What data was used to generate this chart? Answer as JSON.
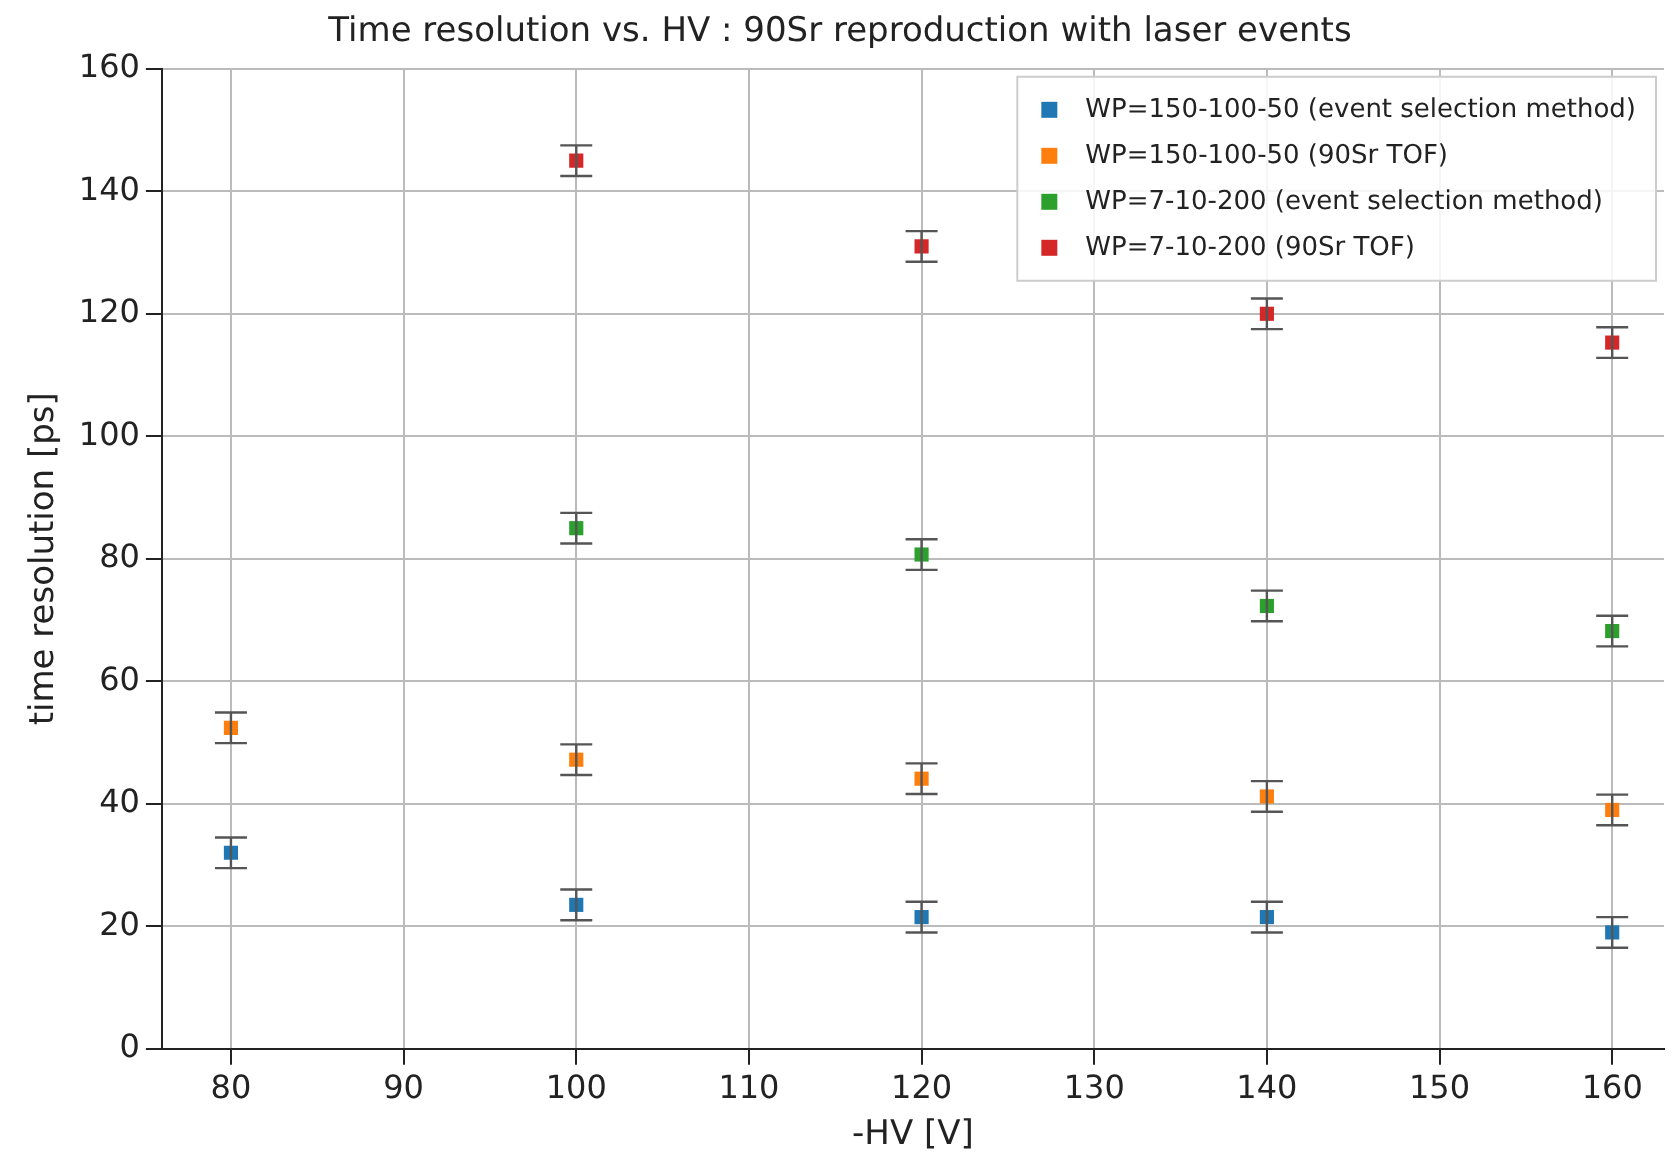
{
  "chart_data": {
    "type": "scatter",
    "title": "Time resolution vs. HV : 90Sr reproduction with laser events",
    "xlabel": "-HV [V]",
    "ylabel": "time resolution [ps]",
    "x": [
      80,
      100,
      120,
      140,
      160
    ],
    "series": [
      {
        "name": "WP=150-100-50 (event selection method)",
        "color": "#1f77b4",
        "values": [
          32,
          23.5,
          21.5,
          21.5,
          19
        ],
        "errors": [
          2.5,
          2.5,
          2.5,
          2.5,
          2.5
        ]
      },
      {
        "name": "WP=150-100-50 (90Sr TOF)",
        "color": "#ff7f0e",
        "values": [
          52.4,
          47.2,
          44.1,
          41.2,
          39
        ],
        "errors": [
          2.5,
          2.5,
          2.5,
          2.5,
          2.5
        ]
      },
      {
        "name": "WP=7-10-200 (event selection method)",
        "color": "#2ca02c",
        "values": [
          null,
          85,
          80.7,
          72.3,
          68.2
        ],
        "errors": [
          null,
          2.5,
          2.5,
          2.5,
          2.5
        ]
      },
      {
        "name": "WP=7-10-200 (90Sr TOF)",
        "color": "#d62728",
        "values": [
          null,
          145,
          131,
          120,
          115.3
        ],
        "errors": [
          null,
          2.5,
          2.5,
          2.5,
          2.5
        ]
      }
    ],
    "xlim": [
      76,
      163
    ],
    "xticks": [
      80,
      90,
      100,
      110,
      120,
      130,
      140,
      150,
      160
    ],
    "ylim": [
      0,
      160
    ],
    "yticks": [
      0,
      20,
      40,
      60,
      80,
      100,
      120,
      140,
      160
    ],
    "grid": true,
    "legend": "top right",
    "marker": "square"
  }
}
